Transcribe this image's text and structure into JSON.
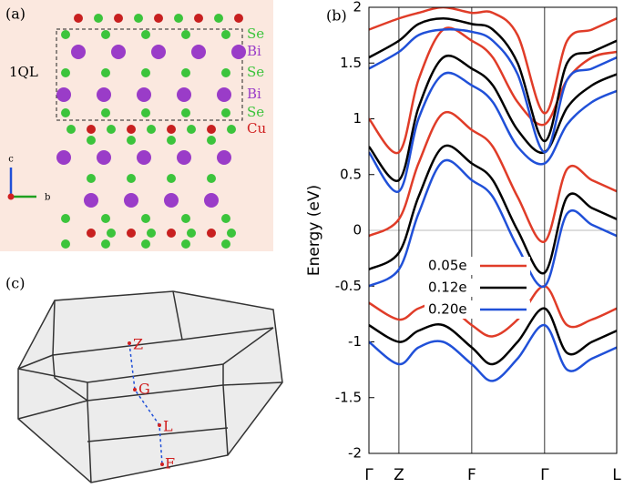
{
  "panels": {
    "a": {
      "label": "(a)",
      "layers": [
        "Se",
        "Bi",
        "Se",
        "Bi",
        "Se",
        "Cu"
      ],
      "ql": "1QL",
      "axes": [
        "c",
        "b"
      ]
    },
    "c": {
      "label": "(c)",
      "points": [
        "Z",
        "G",
        "L",
        "F"
      ]
    }
  },
  "chart_data": {
    "type": "line",
    "label": "(b)",
    "y_label": "Energy (eV)",
    "x": [
      0,
      0.121,
      0.2,
      0.3,
      0.415,
      0.5,
      0.6,
      0.709,
      0.8,
      0.9,
      1.0
    ],
    "xlim": [
      0,
      1
    ],
    "xticks": [
      {
        "value": 0,
        "label": "Γ"
      },
      {
        "value": 0.121,
        "label": "Z"
      },
      {
        "value": 0.415,
        "label": "F"
      },
      {
        "value": 0.709,
        "label": "Γ"
      },
      {
        "value": 1.0,
        "label": "L"
      }
    ],
    "ylim": [
      -2,
      2
    ],
    "yticks": [
      -2,
      -1.5,
      -1,
      -0.5,
      0,
      0.5,
      1,
      1.5,
      2
    ],
    "series": [
      {
        "name": "0.05e",
        "color": "#e03c28",
        "bands": [
          [
            -0.65,
            -0.8,
            -0.7,
            -0.65,
            -0.85,
            -0.95,
            -0.8,
            -0.5,
            -0.85,
            -0.8,
            -0.7
          ],
          [
            -0.05,
            0.1,
            0.6,
            1.05,
            0.9,
            0.75,
            0.3,
            -0.1,
            0.55,
            0.45,
            0.35
          ],
          [
            1.0,
            0.7,
            1.35,
            1.8,
            1.7,
            1.55,
            1.15,
            0.95,
            1.35,
            1.55,
            1.6
          ],
          [
            1.8,
            1.9,
            1.95,
            2.0,
            1.95,
            1.95,
            1.75,
            1.05,
            1.7,
            1.8,
            1.9
          ]
        ]
      },
      {
        "name": "0.12e",
        "color": "#000000",
        "bands": [
          [
            -0.85,
            -1.0,
            -0.9,
            -0.85,
            -1.05,
            -1.2,
            -1.0,
            -0.7,
            -1.1,
            -1.0,
            -0.9
          ],
          [
            -0.35,
            -0.2,
            0.3,
            0.75,
            0.6,
            0.45,
            0.0,
            -0.38,
            0.3,
            0.2,
            0.1
          ],
          [
            0.75,
            0.45,
            1.1,
            1.55,
            1.45,
            1.3,
            0.9,
            0.7,
            1.1,
            1.3,
            1.4
          ],
          [
            1.55,
            1.7,
            1.85,
            1.9,
            1.85,
            1.8,
            1.5,
            0.8,
            1.5,
            1.6,
            1.7
          ]
        ]
      },
      {
        "name": "0.20e",
        "color": "#2050d8",
        "bands": [
          [
            -1.0,
            -1.2,
            -1.05,
            -1.0,
            -1.2,
            -1.35,
            -1.15,
            -0.85,
            -1.25,
            -1.15,
            -1.05
          ],
          [
            -0.5,
            -0.35,
            0.15,
            0.62,
            0.45,
            0.3,
            -0.15,
            -0.5,
            0.15,
            0.05,
            -0.05
          ],
          [
            0.7,
            0.35,
            1.0,
            1.4,
            1.3,
            1.15,
            0.75,
            0.6,
            0.95,
            1.15,
            1.25
          ],
          [
            1.45,
            1.6,
            1.75,
            1.8,
            1.78,
            1.7,
            1.4,
            0.7,
            1.35,
            1.45,
            1.55
          ]
        ]
      }
    ]
  }
}
